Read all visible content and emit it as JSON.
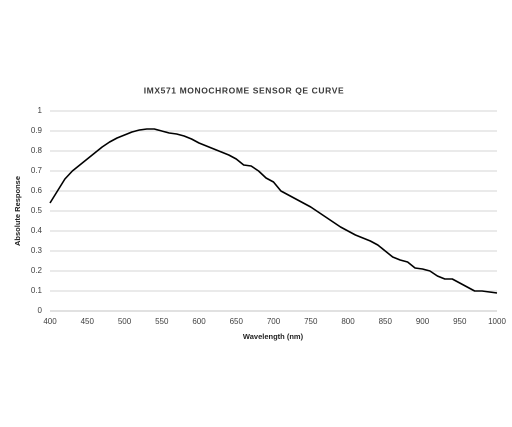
{
  "chart_data": {
    "type": "line",
    "title": "IMX571 MONOCHROME SENSOR QE CURVE",
    "x_label": "Wavelength (nm)",
    "y_label": "Absolute Response",
    "x": [
      400,
      410,
      420,
      430,
      440,
      450,
      460,
      470,
      480,
      490,
      500,
      510,
      520,
      530,
      540,
      550,
      560,
      570,
      580,
      590,
      600,
      610,
      620,
      630,
      640,
      650,
      660,
      670,
      680,
      690,
      700,
      710,
      720,
      730,
      740,
      750,
      760,
      770,
      780,
      790,
      800,
      810,
      820,
      830,
      840,
      850,
      860,
      870,
      880,
      890,
      900,
      910,
      920,
      930,
      940,
      950,
      960,
      970,
      980,
      990,
      1000
    ],
    "series": [
      {
        "name": "QE",
        "color": "#000000",
        "values": [
          0.54,
          0.6,
          0.66,
          0.7,
          0.73,
          0.76,
          0.79,
          0.82,
          0.845,
          0.865,
          0.88,
          0.895,
          0.905,
          0.91,
          0.91,
          0.9,
          0.89,
          0.885,
          0.875,
          0.86,
          0.84,
          0.825,
          0.81,
          0.795,
          0.78,
          0.76,
          0.73,
          0.725,
          0.7,
          0.665,
          0.645,
          0.6,
          0.58,
          0.56,
          0.54,
          0.52,
          0.495,
          0.47,
          0.445,
          0.42,
          0.4,
          0.38,
          0.365,
          0.35,
          0.33,
          0.3,
          0.27,
          0.255,
          0.245,
          0.215,
          0.21,
          0.2,
          0.175,
          0.16,
          0.16,
          0.14,
          0.12,
          0.1,
          0.1,
          0.095,
          0.09
        ]
      }
    ],
    "xlim": [
      400,
      1000
    ],
    "xticks": [
      400,
      450,
      500,
      550,
      600,
      650,
      700,
      750,
      800,
      850,
      900,
      950,
      1000
    ],
    "ylim": [
      0,
      1
    ],
    "yticks": [
      0,
      0.1,
      0.2,
      0.3,
      0.4,
      0.5,
      0.6,
      0.7,
      0.8,
      0.9,
      1
    ],
    "grid": true
  }
}
